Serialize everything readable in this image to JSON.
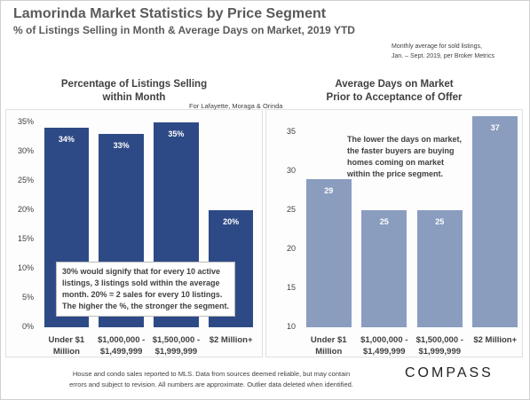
{
  "header": {
    "title": "Lamorinda Market Statistics by Price Segment",
    "subtitle": "% of Listings Selling in Month & Average Days on Market, 2019 YTD",
    "note": [
      "Monthly average for sold listings,",
      "Jan. – Sept. 2019, per Broker Metrics"
    ]
  },
  "chart_data": [
    {
      "type": "bar",
      "title": "Percentage of Listings Selling\nwithin Month",
      "subtitle": "For Lafayette, Moraga & Orinda",
      "categories": [
        "Under $1\nMillion",
        "$1,000,000 -\n$1,499,999",
        "$1,500,000 -\n$1,999,999",
        "$2 Million+"
      ],
      "values": [
        34,
        33,
        35,
        20
      ],
      "value_labels": [
        "34%",
        "33%",
        "35%",
        "20%"
      ],
      "color": "#2e4a86",
      "ylim": [
        0,
        36
      ],
      "yticks": [
        {
          "value": 0,
          "label": "0%"
        },
        {
          "value": 5,
          "label": "5%"
        },
        {
          "value": 10,
          "label": "10%"
        },
        {
          "value": 15,
          "label": "15%"
        },
        {
          "value": 20,
          "label": "20%"
        },
        {
          "value": 25,
          "label": "25%"
        },
        {
          "value": 30,
          "label": "30%"
        },
        {
          "value": 35,
          "label": "35%"
        }
      ],
      "annotation": "30% would signify that for every 10 active\nlistings, 3 listings sold within the average\nmonth. 20% = 2 sales for every 10 listings.\nThe higher the %, the stronger the segment."
    },
    {
      "type": "bar",
      "title": "Average Days on Market\nPrior to Acceptance of Offer",
      "categories": [
        "Under $1\nMillion",
        "$1,000,000 -\n$1,499,999",
        "$1,500,000 -\n$1,999,999",
        "$2 Million+"
      ],
      "values": [
        29,
        25,
        25,
        37
      ],
      "color": "#8a9dbf",
      "ylim": [
        10,
        37
      ],
      "yticks": [
        10,
        15,
        20,
        25,
        30,
        35
      ],
      "annotation": "The lower the days on market,\nthe faster buyers are buying\nhomes coming on market\nwithin the price segment."
    }
  ],
  "footer": {
    "disclaimer": "House and condo sales reported to MLS. Data from sources deemed reliable,  but may contain\nerrors and subject to revision. All numbers are approximate. Outlier data deleted when identified.",
    "logo": "COMPASS"
  }
}
